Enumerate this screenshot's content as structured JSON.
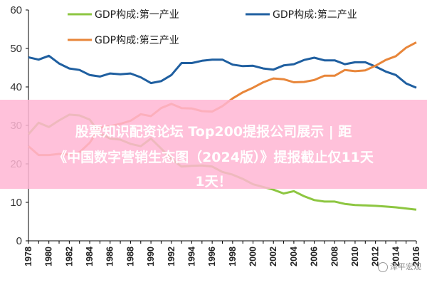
{
  "chart_data": {
    "type": "line",
    "ylim": [
      0,
      60
    ],
    "yticks": [
      0,
      10,
      20,
      30,
      40,
      50,
      60
    ],
    "xlim": [
      1978,
      2016
    ],
    "x": [
      1978,
      1979,
      1980,
      1981,
      1982,
      1983,
      1984,
      1985,
      1986,
      1987,
      1988,
      1989,
      1990,
      1991,
      1992,
      1993,
      1994,
      1995,
      1996,
      1997,
      1998,
      1999,
      2000,
      2001,
      2002,
      2003,
      2004,
      2005,
      2006,
      2007,
      2008,
      2009,
      2010,
      2011,
      2012,
      2013,
      2014,
      2015,
      2016
    ],
    "xticks": [
      1978,
      1980,
      1982,
      1984,
      1986,
      1988,
      1990,
      1992,
      1994,
      1996,
      1998,
      2000,
      2002,
      2004,
      2006,
      2008,
      2010,
      2012,
      2014,
      2016
    ],
    "legend_position": "top",
    "series": [
      {
        "name": "GDP构成:第一产业",
        "color": "#8dc641",
        "values": [
          27.7,
          30.7,
          29.6,
          31.3,
          32.8,
          32.6,
          31.5,
          27.9,
          26.6,
          26.3,
          25.2,
          24.6,
          26.6,
          24.0,
          21.3,
          19.3,
          19.5,
          19.6,
          19.3,
          17.9,
          17.2,
          16.1,
          14.7,
          14.0,
          13.3,
          12.3,
          12.9,
          11.6,
          10.6,
          10.2,
          10.2,
          9.6,
          9.3,
          9.2,
          9.1,
          8.9,
          8.7,
          8.4,
          8.1
        ]
      },
      {
        "name": "GDP构成:第二产业",
        "color": "#1f5fa0",
        "values": [
          47.7,
          47.1,
          48.1,
          46.1,
          44.8,
          44.4,
          43.1,
          42.7,
          43.5,
          43.3,
          43.5,
          42.5,
          41.0,
          41.5,
          43.1,
          46.2,
          46.2,
          46.8,
          47.1,
          47.1,
          45.8,
          45.4,
          45.5,
          44.8,
          44.5,
          45.6,
          45.9,
          47.0,
          47.6,
          46.9,
          46.9,
          45.9,
          46.4,
          46.4,
          45.3,
          44.0,
          43.1,
          40.9,
          39.8
        ]
      },
      {
        "name": "GDP构成:第三产业",
        "color": "#e8863a",
        "values": [
          24.6,
          22.3,
          22.3,
          22.6,
          22.4,
          23.0,
          25.5,
          29.4,
          29.8,
          30.4,
          31.2,
          32.9,
          32.4,
          34.5,
          35.6,
          34.5,
          34.4,
          33.7,
          33.6,
          35.0,
          37.0,
          38.6,
          39.8,
          41.2,
          42.2,
          42.0,
          41.2,
          41.3,
          41.8,
          42.9,
          42.9,
          44.4,
          44.1,
          44.3,
          45.5,
          47.0,
          48.0,
          50.2,
          51.6
        ]
      }
    ]
  },
  "overlay": {
    "line1": "股票知识配资论坛 Top200提报公司展示 | 距",
    "line2": "《中国数字营销生态图（2024版）》提报截止仅11天",
    "line3": "1天！"
  },
  "watermark": "泽平宏观"
}
